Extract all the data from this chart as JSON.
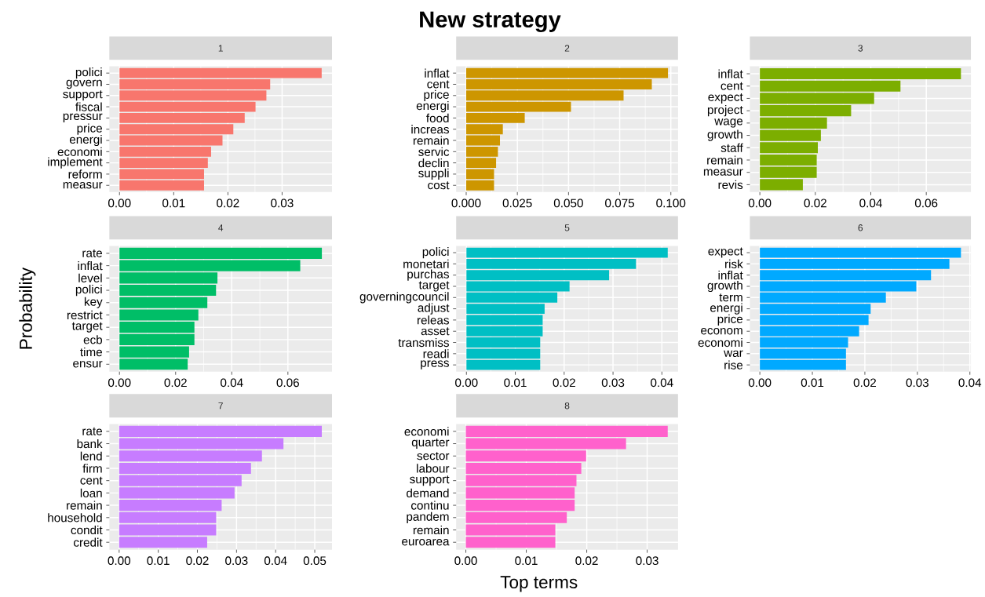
{
  "chart_data": [
    {
      "type": "bar",
      "orientation": "horizontal",
      "title": "1",
      "annotations": [
        "New strategy"
      ],
      "categories": [
        "polici",
        "govern",
        "support",
        "fiscal",
        "pressur",
        "price",
        "energi",
        "economi",
        "implement",
        "reform",
        "measur"
      ],
      "values": [
        0.0373,
        0.0278,
        0.0271,
        0.0251,
        0.0231,
        0.021,
        0.019,
        0.0169,
        0.0163,
        0.0156,
        0.0156
      ],
      "color": "#f8766d",
      "xlim": [
        -0.00187,
        0.0392
      ],
      "xticks": [
        {
          "value": 0,
          "label": "0.00"
        },
        {
          "value": 0.01,
          "label": "0.01"
        },
        {
          "value": 0.02,
          "label": "0.02"
        },
        {
          "value": 0.03,
          "label": "0.03"
        }
      ],
      "grid": true
    },
    {
      "type": "bar",
      "orientation": "horizontal",
      "title": "2",
      "categories": [
        "inflat",
        "cent",
        "price",
        "energi",
        "food",
        "increas",
        "remain",
        "servic",
        "declin",
        "suppli",
        "cost"
      ],
      "values": [
        0.0986,
        0.0907,
        0.0769,
        0.0512,
        0.0286,
        0.0179,
        0.0165,
        0.0155,
        0.0146,
        0.0136,
        0.0136
      ],
      "color": "#cd9600",
      "xlim": [
        -0.0049,
        0.1035
      ],
      "xticks": [
        {
          "value": 0,
          "label": "0.000"
        },
        {
          "value": 0.025,
          "label": "0.025"
        },
        {
          "value": 0.05,
          "label": "0.050"
        },
        {
          "value": 0.075,
          "label": "0.075"
        },
        {
          "value": 0.1,
          "label": "0.100"
        }
      ],
      "grid": true
    },
    {
      "type": "bar",
      "orientation": "horizontal",
      "title": "3",
      "categories": [
        "inflat",
        "cent",
        "expect",
        "project",
        "wage",
        "growth",
        "staff",
        "remain",
        "measur",
        "revis"
      ],
      "values": [
        0.0725,
        0.0507,
        0.0412,
        0.0329,
        0.0242,
        0.022,
        0.0209,
        0.0205,
        0.0205,
        0.0155
      ],
      "color": "#7cae00",
      "xlim": [
        -0.0036,
        0.0761
      ],
      "xticks": [
        {
          "value": 0,
          "label": "0.00"
        },
        {
          "value": 0.02,
          "label": "0.02"
        },
        {
          "value": 0.04,
          "label": "0.04"
        },
        {
          "value": 0.06,
          "label": "0.06"
        }
      ],
      "grid": true
    },
    {
      "type": "bar",
      "orientation": "horizontal",
      "title": "4",
      "ylabel": "Probability",
      "categories": [
        "rate",
        "inflat",
        "level",
        "polici",
        "key",
        "restrict",
        "target",
        "ecb",
        "time",
        "ensur"
      ],
      "values": [
        0.0721,
        0.0644,
        0.0349,
        0.0344,
        0.0313,
        0.0281,
        0.0267,
        0.0267,
        0.0248,
        0.0243
      ],
      "color": "#00be67",
      "xlim": [
        -0.0036,
        0.0757
      ],
      "xticks": [
        {
          "value": 0,
          "label": "0.00"
        },
        {
          "value": 0.02,
          "label": "0.02"
        },
        {
          "value": 0.04,
          "label": "0.04"
        },
        {
          "value": 0.06,
          "label": "0.06"
        }
      ],
      "grid": true
    },
    {
      "type": "bar",
      "orientation": "horizontal",
      "title": "5",
      "categories": [
        "polici",
        "monetari",
        "purchas",
        "target",
        "governingcouncil",
        "adjust",
        "releas",
        "asset",
        "transmiss",
        "readi",
        "press"
      ],
      "values": [
        0.0412,
        0.0347,
        0.0292,
        0.0211,
        0.0186,
        0.016,
        0.0156,
        0.0156,
        0.0151,
        0.0151,
        0.0151
      ],
      "color": "#00bfc4",
      "xlim": [
        -0.0021,
        0.0433
      ],
      "xticks": [
        {
          "value": 0,
          "label": "0.00"
        },
        {
          "value": 0.01,
          "label": "0.01"
        },
        {
          "value": 0.02,
          "label": "0.02"
        },
        {
          "value": 0.03,
          "label": "0.03"
        },
        {
          "value": 0.04,
          "label": "0.04"
        }
      ],
      "grid": true
    },
    {
      "type": "bar",
      "orientation": "horizontal",
      "title": "6",
      "categories": [
        "expect",
        "risk",
        "inflat",
        "growth",
        "term",
        "energi",
        "price",
        "econom",
        "economi",
        "war",
        "rise"
      ],
      "values": [
        0.0383,
        0.0361,
        0.0326,
        0.0298,
        0.024,
        0.0211,
        0.0207,
        0.0189,
        0.0168,
        0.0164,
        0.0164
      ],
      "color": "#00a9ff",
      "xlim": [
        -0.0019,
        0.0402
      ],
      "xticks": [
        {
          "value": 0,
          "label": "0.00"
        },
        {
          "value": 0.01,
          "label": "0.01"
        },
        {
          "value": 0.02,
          "label": "0.02"
        },
        {
          "value": 0.03,
          "label": "0.03"
        },
        {
          "value": 0.04,
          "label": "0.04"
        }
      ],
      "grid": true
    },
    {
      "type": "bar",
      "orientation": "horizontal",
      "title": "7",
      "categories": [
        "rate",
        "bank",
        "lend",
        "firm",
        "cent",
        "loan",
        "remain",
        "household",
        "condit",
        "credit"
      ],
      "values": [
        0.0518,
        0.042,
        0.0365,
        0.0337,
        0.0313,
        0.0295,
        0.0262,
        0.0248,
        0.0248,
        0.0225
      ],
      "color": "#c77cff",
      "xlim": [
        -0.0025,
        0.0544
      ],
      "xticks": [
        {
          "value": 0,
          "label": "0.00"
        },
        {
          "value": 0.01,
          "label": "0.01"
        },
        {
          "value": 0.02,
          "label": "0.02"
        },
        {
          "value": 0.03,
          "label": "0.03"
        },
        {
          "value": 0.04,
          "label": "0.04"
        },
        {
          "value": 0.05,
          "label": "0.05"
        }
      ],
      "grid": true
    },
    {
      "type": "bar",
      "orientation": "horizontal",
      "title": "8",
      "xlabel": "Top terms",
      "categories": [
        "economi",
        "quarter",
        "sector",
        "labour",
        "support",
        "demand",
        "continu",
        "pandem",
        "remain",
        "euroarea"
      ],
      "values": [
        0.0334,
        0.0265,
        0.0199,
        0.0191,
        0.0183,
        0.018,
        0.018,
        0.0167,
        0.0148,
        0.0148
      ],
      "color": "#ff61cc",
      "xlim": [
        -0.0016,
        0.0351
      ],
      "xticks": [
        {
          "value": 0,
          "label": "0.00"
        },
        {
          "value": 0.01,
          "label": "0.01"
        },
        {
          "value": 0.02,
          "label": "0.02"
        },
        {
          "value": 0.03,
          "label": "0.03"
        }
      ],
      "grid": true
    }
  ]
}
